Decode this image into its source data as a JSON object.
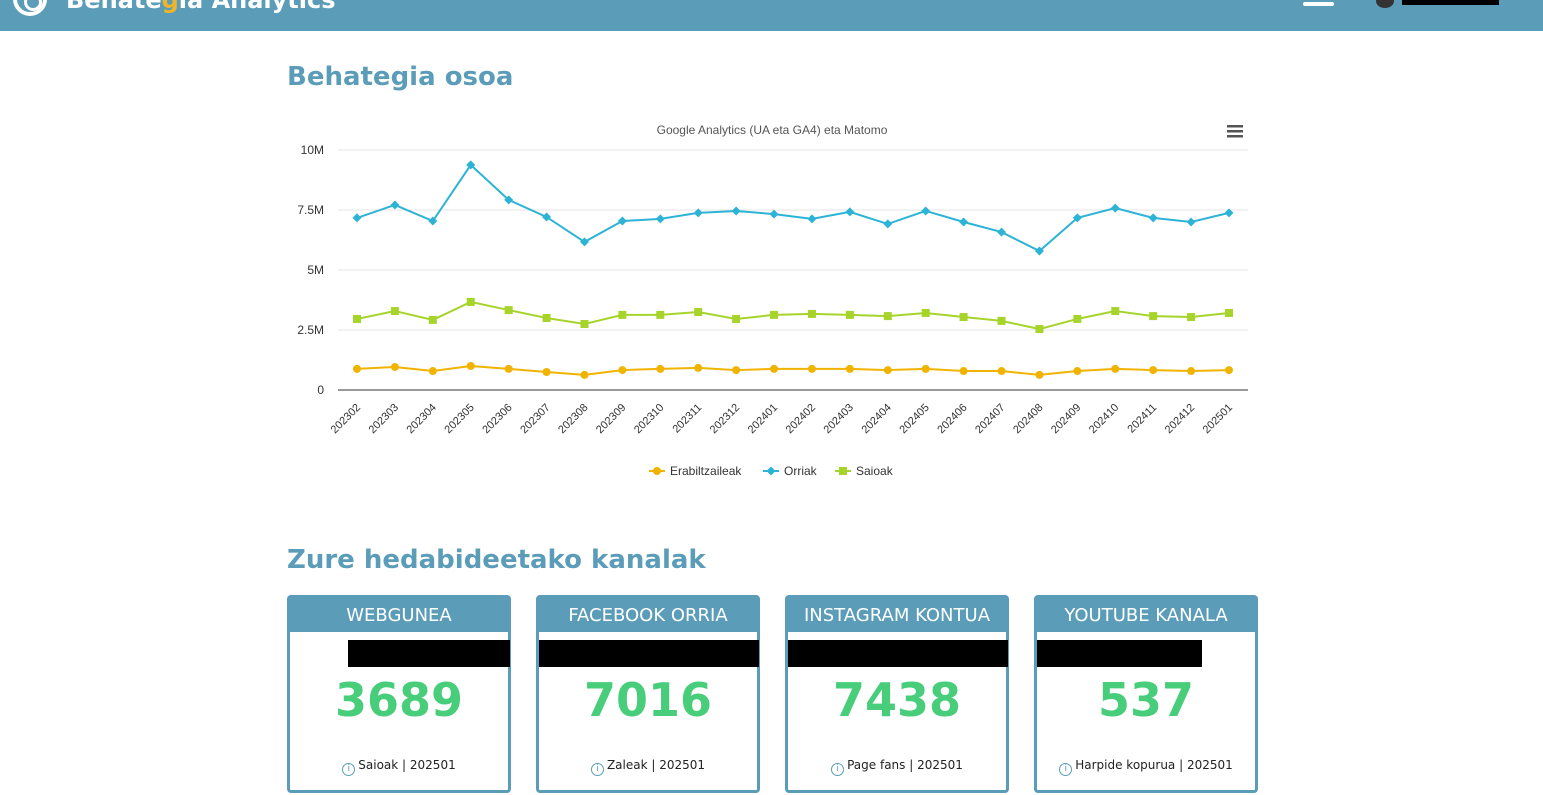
{
  "header": {
    "brand_pre": "Behate",
    "brand_g": "g",
    "brand_post": "ia Analytics"
  },
  "section1": {
    "title": "Behategia osoa"
  },
  "section2": {
    "title": "Zure hedabideetako kanalak"
  },
  "chart_data": {
    "type": "line",
    "title": "Google Analytics (UA eta GA4) eta Matomo",
    "categories": [
      "202302",
      "202303",
      "202304",
      "202305",
      "202306",
      "202307",
      "202308",
      "202309",
      "202310",
      "202311",
      "202312",
      "202401",
      "202402",
      "202403",
      "202404",
      "202405",
      "202406",
      "202407",
      "202408",
      "202409",
      "202410",
      "202411",
      "202412",
      "202501"
    ],
    "yticks": [
      "0",
      "2.5M",
      "5M",
      "7.5M",
      "10M"
    ],
    "ylim": [
      0,
      10000000
    ],
    "legend_position": "bottom",
    "series": [
      {
        "name": "Erabiltzaileak",
        "color": "#f0b400",
        "marker": "circle",
        "values": [
          880000,
          960000,
          790000,
          1000000,
          880000,
          750000,
          630000,
          830000,
          880000,
          920000,
          830000,
          880000,
          880000,
          880000,
          830000,
          880000,
          790000,
          790000,
          630000,
          790000,
          880000,
          830000,
          790000,
          830000
        ]
      },
      {
        "name": "Orriak",
        "color": "#2db3d6",
        "marker": "diamond",
        "values": [
          7170000,
          7710000,
          7040000,
          9380000,
          7920000,
          7210000,
          6170000,
          7040000,
          7130000,
          7380000,
          7460000,
          7330000,
          7130000,
          7420000,
          6920000,
          7460000,
          7000000,
          6580000,
          5790000,
          7170000,
          7580000,
          7170000,
          7000000,
          7380000
        ]
      },
      {
        "name": "Saioak",
        "color": "#a6d42b",
        "marker": "square",
        "values": [
          2960000,
          3290000,
          2920000,
          3670000,
          3330000,
          3000000,
          2750000,
          3130000,
          3130000,
          3250000,
          2960000,
          3130000,
          3170000,
          3130000,
          3080000,
          3210000,
          3040000,
          2880000,
          2540000,
          2960000,
          3290000,
          3080000,
          3040000,
          3210000
        ]
      }
    ]
  },
  "cards": [
    {
      "title": "WEBGUNEA",
      "value": "3689",
      "footer": "Saioak | 202501"
    },
    {
      "title": "FACEBOOK ORRIA",
      "value": "7016",
      "footer": "Zaleak | 202501"
    },
    {
      "title": "INSTAGRAM KONTUA",
      "value": "7438",
      "footer": "Page fans | 202501"
    },
    {
      "title": "YOUTUBE KANALA",
      "value": "537",
      "footer": "Harpide kopurua | 202501"
    }
  ]
}
